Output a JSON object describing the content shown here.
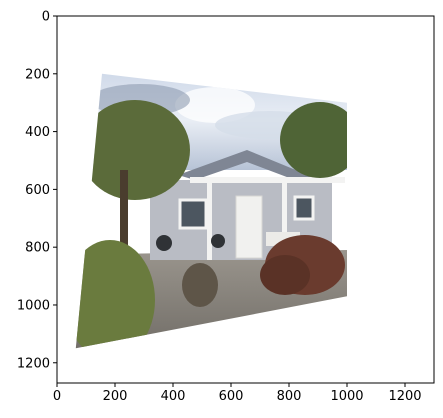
{
  "chart_data": {
    "type": "image",
    "title": "",
    "xlabel": "",
    "ylabel": "",
    "xlim": [
      0,
      1300
    ],
    "ylim": [
      1270,
      0
    ],
    "y_inverted": true,
    "x_ticks": [
      0,
      200,
      400,
      600,
      800,
      1000,
      1200
    ],
    "y_ticks": [
      0,
      200,
      400,
      600,
      800,
      1000,
      1200
    ],
    "x_tick_labels": [
      "0",
      "200",
      "400",
      "600",
      "800",
      "1000",
      "1200"
    ],
    "y_tick_labels": [
      "0",
      "200",
      "400",
      "600",
      "800",
      "1000",
      "1200"
    ],
    "warped_photo_corners": [
      {
        "x": 155,
        "y": 200
      },
      {
        "x": 1000,
        "y": 300
      },
      {
        "x": 1000,
        "y": 970
      },
      {
        "x": 65,
        "y": 1150
      }
    ],
    "colors": {
      "sky": "#aebfd8",
      "house_siding": "#b9bcc4",
      "roof": "#7f8694",
      "trim": "#f3f3f2",
      "foliage": "#5b6b3a",
      "shrub_red": "#6a3b2e",
      "ground": "#8f8a83"
    }
  }
}
